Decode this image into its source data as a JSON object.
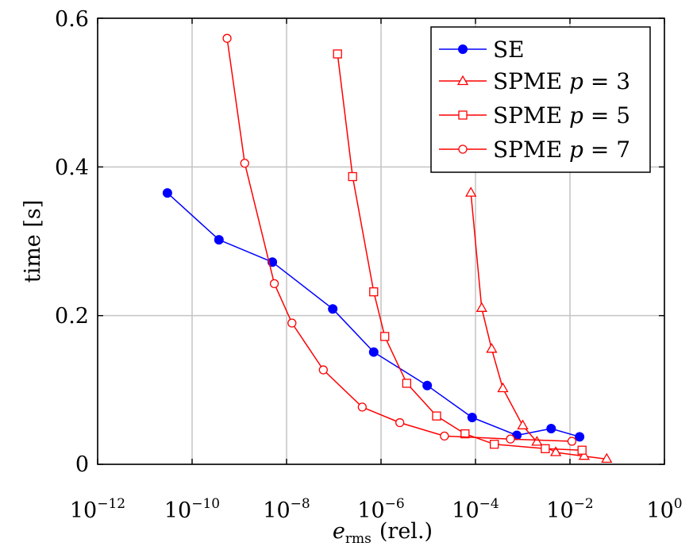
{
  "chart_data": {
    "type": "line",
    "xlabel": "e",
    "xlabel_sub": "rms",
    "xlabel_suffix": "(rel.)",
    "ylabel": "time [s]",
    "x_scale": "log",
    "xlim": [
      1e-12,
      1
    ],
    "ylim": [
      0,
      0.6
    ],
    "x_ticks": [
      {
        "base": "10",
        "exp": "−12"
      },
      {
        "base": "10",
        "exp": "−10"
      },
      {
        "base": "10",
        "exp": "−8"
      },
      {
        "base": "10",
        "exp": "−6"
      },
      {
        "base": "10",
        "exp": "−4"
      },
      {
        "base": "10",
        "exp": "−2"
      },
      {
        "base": "10",
        "exp": "0"
      }
    ],
    "x_tick_values": [
      1e-12,
      1e-10,
      1e-08,
      1e-06,
      0.0001,
      0.01,
      1
    ],
    "y_ticks": [
      "0",
      "0.2",
      "0.4",
      "0.6"
    ],
    "y_tick_values": [
      0,
      0.2,
      0.4,
      0.6
    ],
    "grid": true,
    "legend_position": "top-right",
    "series": [
      {
        "name": "SE",
        "color": "#0000ff",
        "marker": "filled-circle",
        "x": [
          3e-11,
          3.7e-10,
          5e-09,
          9.5e-08,
          7e-07,
          9.5e-06,
          8.5e-05,
          0.00075,
          0.004,
          0.016
        ],
        "y": [
          0.365,
          0.302,
          0.272,
          0.209,
          0.151,
          0.106,
          0.063,
          0.039,
          0.048,
          0.037
        ]
      },
      {
        "name": "SPME p = 3",
        "name_main": "SPME ",
        "name_var": "p",
        "name_rest": " = 3",
        "color": "#ff0000",
        "marker": "open-triangle",
        "x": [
          8e-05,
          0.000135,
          0.00022,
          0.00038,
          0.001,
          0.002,
          0.005,
          0.02,
          0.06
        ],
        "y": [
          0.365,
          0.21,
          0.155,
          0.102,
          0.052,
          0.03,
          0.016,
          0.011,
          0.007
        ]
      },
      {
        "name": "SPME p = 5",
        "name_main": "SPME ",
        "name_var": "p",
        "name_rest": " = 5",
        "color": "#ff0000",
        "marker": "open-square",
        "x": [
          1.2e-07,
          2.5e-07,
          7e-07,
          1.2e-06,
          3.5e-06,
          1.5e-05,
          6e-05,
          0.00025,
          0.003,
          0.018
        ],
        "y": [
          0.552,
          0.387,
          0.232,
          0.172,
          0.109,
          0.065,
          0.041,
          0.027,
          0.021,
          0.019
        ]
      },
      {
        "name": "SPME p = 7",
        "name_main": "SPME ",
        "name_var": "p",
        "name_rest": " = 7",
        "color": "#ff0000",
        "marker": "open-circle",
        "x": [
          5.5e-10,
          1.3e-09,
          5.5e-09,
          1.3e-08,
          6e-08,
          4e-07,
          2.5e-06,
          2.2e-05,
          0.00055,
          0.011
        ],
        "y": [
          0.573,
          0.405,
          0.243,
          0.19,
          0.127,
          0.077,
          0.056,
          0.038,
          0.034,
          0.031
        ]
      }
    ]
  }
}
